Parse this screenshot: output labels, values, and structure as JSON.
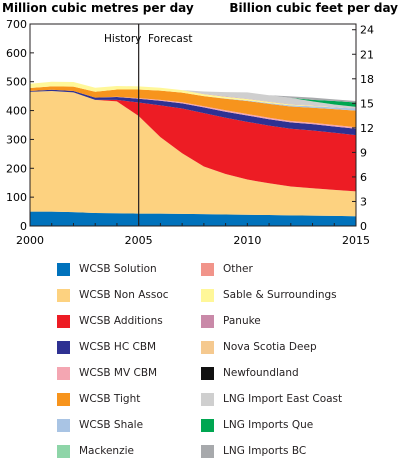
{
  "chart_data": {
    "type": "area",
    "left_axis_title": "Million cubic metres per day",
    "right_axis_title": "Billion cubic feet per day",
    "x_ticks": [
      "2000",
      "2005",
      "2010",
      "2015"
    ],
    "xlim": [
      2000,
      2015
    ],
    "ylim_left": [
      0,
      700
    ],
    "y_ticks_left": [
      "0",
      "100",
      "200",
      "300",
      "400",
      "500",
      "600",
      "700"
    ],
    "ylim_right": [
      0,
      24.7
    ],
    "y_ticks_right": [
      "0",
      "3",
      "6",
      "9",
      "12",
      "15",
      "18",
      "21",
      "24"
    ],
    "divider_year": 2005,
    "annotations": {
      "history": "History",
      "forecast": "Forecast"
    },
    "years": [
      2000,
      2001,
      2002,
      2003,
      2004,
      2005,
      2006,
      2007,
      2008,
      2009,
      2010,
      2011,
      2012,
      2013,
      2014,
      2015
    ],
    "series": [
      {
        "name": "WCSB Solution",
        "color": "#0072bc",
        "values": [
          50,
          50,
          48,
          45,
          44,
          43,
          43,
          42,
          41,
          40,
          39,
          38,
          37,
          36,
          35,
          34
        ]
      },
      {
        "name": "WCSB Non Assoc",
        "color": "#fdd280",
        "values": [
          415,
          418,
          415,
          392,
          388,
          338,
          265,
          210,
          165,
          140,
          122,
          110,
          100,
          95,
          90,
          86
        ]
      },
      {
        "name": "WCSB Additions",
        "color": "#ed1c24",
        "values": [
          0,
          0,
          0,
          0,
          5,
          47,
          110,
          155,
          185,
          195,
          200,
          200,
          200,
          200,
          198,
          195
        ]
      },
      {
        "name": "WCSB HC CBM",
        "color": "#2e3192",
        "values": [
          3,
          4,
          5,
          8,
          10,
          13,
          16,
          18,
          20,
          21,
          22,
          22,
          22,
          22,
          22,
          22
        ]
      },
      {
        "name": "WCSB MV CBM",
        "color": "#f4a6b2",
        "values": [
          0,
          0,
          0,
          0,
          1,
          2,
          3,
          4,
          4,
          5,
          5,
          5,
          5,
          5,
          5,
          5
        ]
      },
      {
        "name": "WCSB Tight",
        "color": "#f7941d",
        "values": [
          10,
          12,
          15,
          20,
          25,
          30,
          32,
          33,
          35,
          40,
          45,
          48,
          50,
          52,
          55,
          58
        ]
      },
      {
        "name": "WCSB Shale",
        "color": "#a9c4e4",
        "values": [
          0,
          0,
          0,
          0,
          0,
          0,
          0,
          0,
          0,
          1,
          2,
          3,
          4,
          5,
          6,
          7
        ]
      },
      {
        "name": "Mackenzie",
        "color": "#8ed5a8",
        "values": [
          0,
          0,
          0,
          0,
          0,
          0,
          0,
          0,
          0,
          0,
          0,
          0,
          0,
          0,
          0,
          0
        ]
      },
      {
        "name": "Other",
        "color": "#f1948a",
        "values": [
          0,
          0,
          0,
          0,
          0,
          0,
          0,
          0,
          0,
          0,
          0,
          0,
          0,
          0,
          0,
          0
        ]
      },
      {
        "name": "Sable & Surroundings",
        "color": "#fff799",
        "values": [
          15,
          16,
          16,
          14,
          12,
          11,
          10,
          9,
          7,
          6,
          5,
          4,
          3,
          2,
          1,
          0
        ]
      },
      {
        "name": "Panuke",
        "color": "#c989a8",
        "values": [
          0,
          0,
          0,
          0,
          0,
          0,
          0,
          0,
          1,
          1,
          1,
          1,
          1,
          1,
          1,
          1
        ]
      },
      {
        "name": "Nova Scotia Deep",
        "color": "#f5c98f",
        "values": [
          0,
          0,
          0,
          0,
          0,
          0,
          0,
          0,
          0,
          0,
          0,
          0,
          0,
          0,
          0,
          0
        ]
      },
      {
        "name": "Newfoundland",
        "color": "#111111",
        "values": [
          0,
          0,
          0,
          0,
          0,
          0,
          0,
          0,
          0,
          0,
          0,
          0,
          0,
          0,
          0,
          0
        ]
      },
      {
        "name": "LNG Import East Coast",
        "color": "#cfcfcf",
        "values": [
          0,
          0,
          0,
          0,
          0,
          0,
          0,
          0,
          8,
          15,
          22,
          22,
          22,
          14,
          8,
          5
        ]
      },
      {
        "name": "LNG Imports Que",
        "color": "#00a651",
        "values": [
          0,
          0,
          0,
          0,
          0,
          0,
          0,
          0,
          0,
          0,
          0,
          0,
          0,
          5,
          12,
          15
        ]
      },
      {
        "name": "LNG Imports BC",
        "color": "#a7a9ac",
        "values": [
          0,
          0,
          0,
          0,
          0,
          0,
          0,
          0,
          0,
          0,
          0,
          0,
          5,
          8,
          6,
          5
        ]
      }
    ]
  }
}
